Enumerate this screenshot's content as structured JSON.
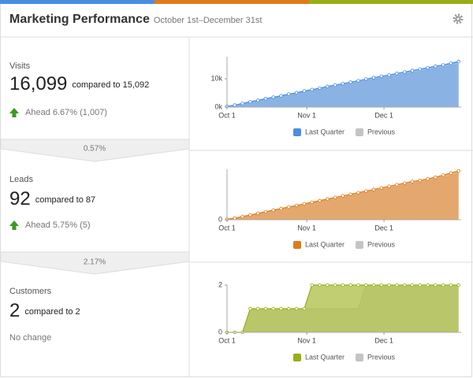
{
  "header": {
    "title": "Marketing Performance",
    "subtitle": "October 1st–December 31st"
  },
  "metrics": [
    {
      "label": "Visits",
      "value": "16,099",
      "comparison": "compared to 15,092",
      "status": "Ahead 6.67% (1,007)"
    },
    {
      "label": "Leads",
      "value": "92",
      "comparison": "compared to 87",
      "status": "Ahead 5.75% (5)"
    },
    {
      "label": "Customers",
      "value": "2",
      "comparison": "compared to 2",
      "status": "No change"
    }
  ],
  "conversions": [
    "0.57%",
    "2.17%"
  ],
  "chart_data": [
    {
      "type": "area",
      "x": [
        0,
        3,
        6,
        9,
        12,
        15,
        18,
        21,
        24,
        27,
        30,
        33,
        36,
        39,
        42,
        45,
        48,
        51,
        54,
        57,
        60,
        63,
        66,
        69,
        72,
        75,
        78,
        81,
        84,
        87,
        90
      ],
      "xlim": [
        0,
        91
      ],
      "xticks": [
        {
          "value": 0,
          "label": "Oct 1"
        },
        {
          "value": 31,
          "label": "Nov 1"
        },
        {
          "value": 61,
          "label": "Dec 1"
        }
      ],
      "ylim": [
        0,
        17800
      ],
      "yticks": [
        {
          "value": 0,
          "label": "0k"
        },
        {
          "value": 10000,
          "label": "10k"
        }
      ],
      "series": [
        {
          "name": "Last Quarter",
          "color": "#4a8ee0",
          "values": [
            300,
            700,
            1300,
            1900,
            2400,
            3000,
            3500,
            4000,
            4600,
            5100,
            5700,
            6200,
            6700,
            7300,
            7800,
            8300,
            8800,
            9300,
            9900,
            10400,
            10900,
            11300,
            11900,
            12400,
            12900,
            13400,
            13900,
            14400,
            14900,
            15500,
            16099
          ]
        },
        {
          "name": "Previous",
          "color": "#c4c4c4",
          "values": [
            280,
            650,
            1200,
            1750,
            2250,
            2800,
            3300,
            3750,
            4300,
            4800,
            5350,
            5800,
            6300,
            6850,
            7300,
            7800,
            8250,
            8700,
            9300,
            9750,
            10200,
            10600,
            11150,
            11650,
            12100,
            12550,
            13050,
            13500,
            13950,
            14550,
            15092
          ]
        }
      ]
    },
    {
      "type": "area",
      "x": [
        0,
        3,
        6,
        9,
        12,
        15,
        18,
        21,
        24,
        27,
        30,
        33,
        36,
        39,
        42,
        45,
        48,
        51,
        54,
        57,
        60,
        63,
        66,
        69,
        72,
        75,
        78,
        81,
        84,
        87,
        90
      ],
      "xlim": [
        0,
        91
      ],
      "xticks": [
        {
          "value": 0,
          "label": "Oct 1"
        },
        {
          "value": 31,
          "label": "Nov 1"
        },
        {
          "value": 61,
          "label": "Dec 1"
        }
      ],
      "ylim": [
        0,
        95
      ],
      "yticks": [
        0
      ],
      "series": [
        {
          "name": "Last Quarter",
          "color": "#e07b1a",
          "values": [
            1,
            3,
            6,
            9,
            12,
            15,
            18,
            21,
            24,
            27,
            30,
            33,
            36,
            39,
            42,
            45,
            48,
            51,
            54,
            57,
            60,
            63,
            66,
            69,
            72,
            74,
            77,
            80,
            84,
            88,
            92
          ]
        },
        {
          "name": "Previous",
          "color": "#c4c4c4",
          "values": [
            1,
            3,
            5,
            8,
            11,
            14,
            17,
            20,
            23,
            25,
            28,
            31,
            34,
            37,
            39,
            42,
            45,
            48,
            51,
            54,
            57,
            59,
            62,
            65,
            68,
            70,
            73,
            76,
            79,
            83,
            87
          ]
        }
      ]
    },
    {
      "type": "area",
      "x": [
        0,
        3,
        6,
        9,
        12,
        15,
        18,
        21,
        24,
        27,
        30,
        33,
        36,
        39,
        42,
        45,
        48,
        51,
        54,
        57,
        60,
        63,
        66,
        69,
        72,
        75,
        78,
        81,
        84,
        87,
        90
      ],
      "xlim": [
        0,
        91
      ],
      "xticks": [
        {
          "value": 0,
          "label": "Oct 1"
        },
        {
          "value": 31,
          "label": "Nov 1"
        },
        {
          "value": 61,
          "label": "Dec 1"
        }
      ],
      "ylim": [
        0,
        2
      ],
      "yticks": [
        0,
        2
      ],
      "series": [
        {
          "name": "Last Quarter",
          "color": "#9aae14",
          "values": [
            0,
            0,
            0,
            1,
            1,
            1,
            1,
            1,
            1,
            1,
            1,
            2,
            2,
            2,
            2,
            2,
            2,
            2,
            2,
            2,
            2,
            2,
            2,
            2,
            2,
            2,
            2,
            2,
            2,
            2,
            2
          ]
        },
        {
          "name": "Previous",
          "color": "#c4c4c4",
          "values": [
            0,
            0,
            0,
            1,
            1,
            1,
            1,
            1,
            1,
            1,
            1,
            1,
            1,
            1,
            1,
            1,
            1,
            1,
            2,
            2,
            2,
            2,
            2,
            2,
            2,
            2,
            2,
            2,
            2,
            2,
            2
          ]
        }
      ]
    }
  ]
}
